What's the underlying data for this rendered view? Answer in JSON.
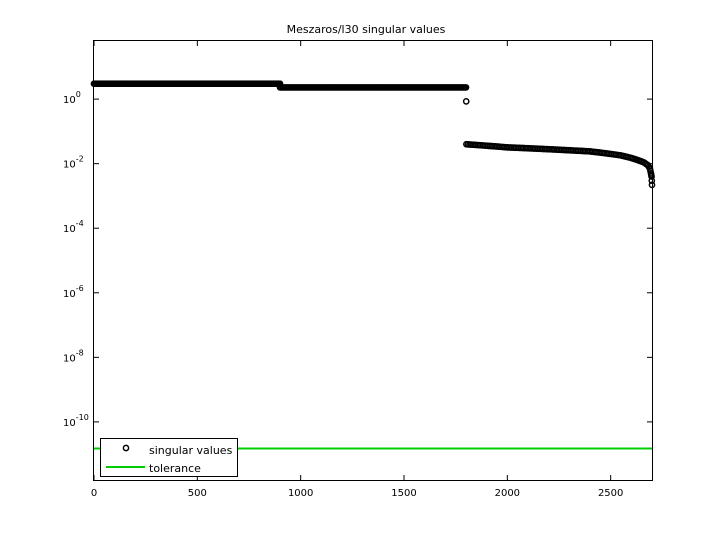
{
  "chart_data": {
    "type": "scatter",
    "title": "Meszaros/l30 singular values",
    "xlabel": "",
    "ylabel": "",
    "xlim": [
      0,
      2700
    ],
    "ylim_log10": [
      -11.8,
      1.8
    ],
    "y_scale": "log",
    "x_ticks": [
      {
        "value": 0,
        "label": "0"
      },
      {
        "value": 500,
        "label": "500"
      },
      {
        "value": 1000,
        "label": "1000"
      },
      {
        "value": 1500,
        "label": "1500"
      },
      {
        "value": 2000,
        "label": "2000"
      },
      {
        "value": 2500,
        "label": "2500"
      }
    ],
    "y_ticks": [
      {
        "exp": 0,
        "base": "10",
        "sup": "0"
      },
      {
        "exp": -2,
        "base": "10",
        "sup": "-2"
      },
      {
        "exp": -4,
        "base": "10",
        "sup": "-4"
      },
      {
        "exp": -6,
        "base": "10",
        "sup": "-6"
      },
      {
        "exp": -8,
        "base": "10",
        "sup": "-8"
      },
      {
        "exp": -10,
        "base": "10",
        "sup": "-10"
      }
    ],
    "grid": false,
    "legend_position": "bottom-left",
    "series": [
      {
        "name": "singular values",
        "marker": "open-circle",
        "color": "#000000",
        "segments": [
          {
            "x_start": 0,
            "x_end": 900,
            "y": 3.0
          },
          {
            "x_start": 900,
            "x_end": 1800,
            "y": 2.3
          }
        ],
        "points": [
          {
            "x": 1801,
            "y": 0.85
          },
          {
            "x": 1802,
            "y": 0.04
          },
          {
            "x": 1850,
            "y": 0.038
          },
          {
            "x": 1900,
            "y": 0.036
          },
          {
            "x": 1950,
            "y": 0.034
          },
          {
            "x": 2000,
            "y": 0.032
          },
          {
            "x": 2050,
            "y": 0.031
          },
          {
            "x": 2100,
            "y": 0.03
          },
          {
            "x": 2150,
            "y": 0.029
          },
          {
            "x": 2200,
            "y": 0.028
          },
          {
            "x": 2250,
            "y": 0.027
          },
          {
            "x": 2300,
            "y": 0.026
          },
          {
            "x": 2350,
            "y": 0.025
          },
          {
            "x": 2400,
            "y": 0.024
          },
          {
            "x": 2450,
            "y": 0.022
          },
          {
            "x": 2500,
            "y": 0.02
          },
          {
            "x": 2550,
            "y": 0.018
          },
          {
            "x": 2600,
            "y": 0.015
          },
          {
            "x": 2630,
            "y": 0.013
          },
          {
            "x": 2660,
            "y": 0.011
          },
          {
            "x": 2680,
            "y": 0.009
          },
          {
            "x": 2690,
            "y": 0.007
          },
          {
            "x": 2695,
            "y": 0.005
          },
          {
            "x": 2698,
            "y": 0.004
          },
          {
            "x": 2700,
            "y": 0.0022
          }
        ]
      },
      {
        "name": "tolerance",
        "marker": "line",
        "color": "#00cc00",
        "y": 1.5e-11
      }
    ]
  }
}
